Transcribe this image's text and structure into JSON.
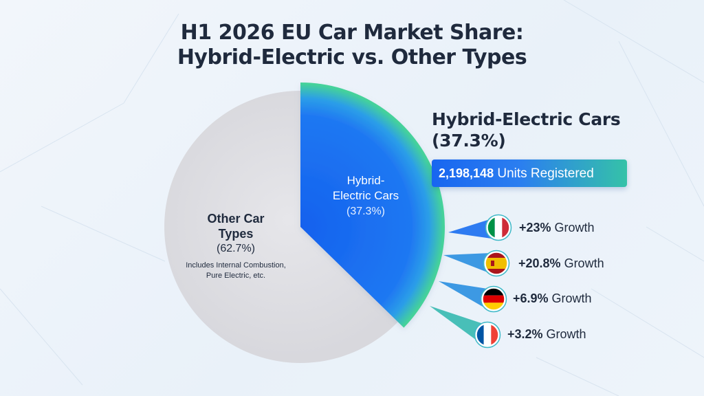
{
  "title_line1": "H1 2026 EU Car Market Share:",
  "title_line2": "Hybrid-Electric vs. Other Types",
  "colors": {
    "hybrid": "#1a6ef0",
    "hybrid_rim": "#3fcc9c",
    "other": "#dfdfe3",
    "text": "#1f2a3d",
    "badge_start": "#1866f0",
    "badge_end": "#35c2a8"
  },
  "chart_data": {
    "type": "pie",
    "title": "H1 2026 EU Car Market Share: Hybrid-Electric vs. Other Types",
    "slices": [
      {
        "label_line1": "Hybrid-",
        "label_line2": "Electric Cars",
        "value": 37.3,
        "value_label": "(37.3%)",
        "color": "#1a6ef0"
      },
      {
        "label_line1": "Other Car",
        "label_line2": "Types",
        "value": 62.7,
        "value_label": "(62.7%)",
        "note_line1": "Includes Internal Combustion,",
        "note_line2": "Pure Electric, etc.",
        "color": "#dfdfe3"
      }
    ]
  },
  "callout": {
    "title_line1": "Hybrid-Electric Cars",
    "title_line2": "(37.3%)",
    "units_value": "2,198,148",
    "units_label": " Units Registered"
  },
  "growth": [
    {
      "country": "Italy",
      "flag_icon": "italy-flag-icon",
      "value": "+23%",
      "label": " Growth"
    },
    {
      "country": "Spain",
      "flag_icon": "spain-flag-icon",
      "value": "+20.8%",
      "label": " Growth"
    },
    {
      "country": "Germany",
      "flag_icon": "germany-flag-icon",
      "value": "+6.9%",
      "label": " Growth"
    },
    {
      "country": "France",
      "flag_icon": "france-flag-icon",
      "value": "+3.2%",
      "label": " Growth"
    }
  ]
}
